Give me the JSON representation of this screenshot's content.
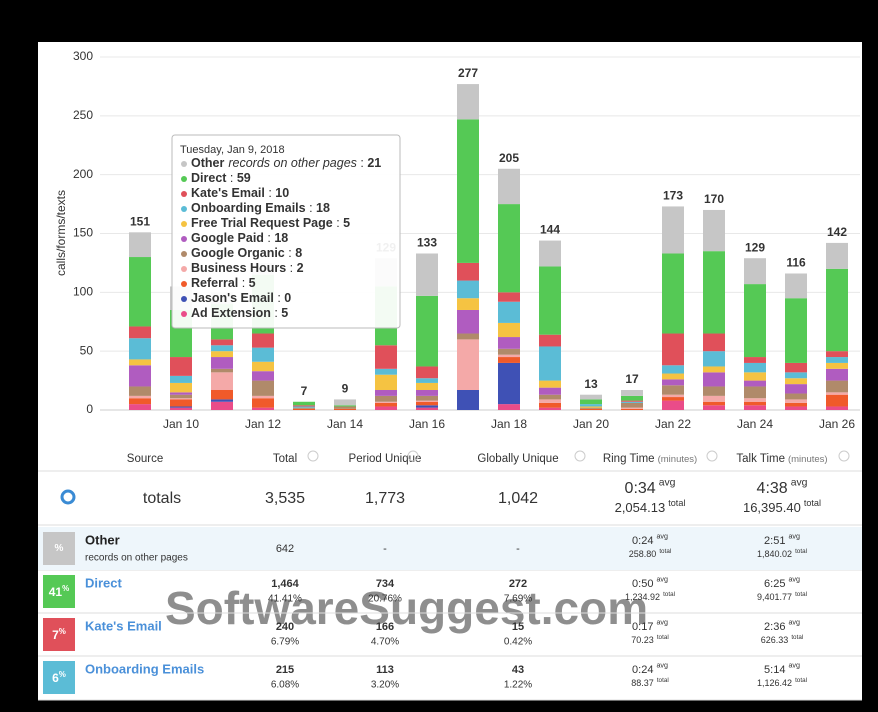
{
  "chart_data": {
    "type": "stacked-bar",
    "y_label": "calls/forms/texts",
    "categories": [
      null,
      "Jan 10",
      null,
      "Jan 12",
      null,
      "Jan 14",
      null,
      "Jan 16",
      null,
      "Jan 18",
      null,
      "Jan 20",
      null,
      "Jan 22",
      null,
      "Jan 24",
      null,
      "Jan 26"
    ],
    "totals": [
      151,
      null,
      null,
      null,
      7,
      9,
      129,
      133,
      277,
      205,
      144,
      13,
      17,
      173,
      170,
      129,
      116,
      142
    ],
    "ylim": [
      0,
      300
    ],
    "yticks": [
      0,
      50,
      100,
      150,
      200,
      250,
      300
    ],
    "grid": true,
    "series": [
      {
        "name": "Other",
        "note": "records on other pages",
        "color": "#c6c6c6",
        "values": [
          21,
          20,
          10,
          10,
          0,
          5,
          24,
          36,
          30,
          30,
          22,
          4,
          5,
          40,
          35,
          22,
          21,
          22
        ]
      },
      {
        "name": "Direct",
        "color": "#55c955",
        "values": [
          59,
          40,
          30,
          50,
          3,
          1,
          50,
          60,
          122,
          75,
          58,
          4,
          4,
          68,
          70,
          62,
          55,
          70
        ]
      },
      {
        "name": "Kate's Email",
        "color": "#e0505a",
        "values": [
          10,
          16,
          5,
          12,
          1,
          0,
          20,
          10,
          15,
          8,
          10,
          0,
          1,
          27,
          15,
          5,
          8,
          5
        ]
      },
      {
        "name": "Onboarding Emails",
        "color": "#5bbcd6",
        "values": [
          18,
          6,
          5,
          12,
          1,
          0,
          5,
          4,
          15,
          18,
          29,
          2,
          1,
          7,
          13,
          8,
          5,
          5
        ]
      },
      {
        "name": "Free Trial Request Page",
        "color": "#f5c342",
        "values": [
          5,
          8,
          5,
          8,
          0,
          0,
          13,
          6,
          10,
          12,
          6,
          1,
          0,
          5,
          5,
          7,
          5,
          5
        ]
      },
      {
        "name": "Google Paid",
        "color": "#b05cc0",
        "values": [
          18,
          2,
          10,
          8,
          0,
          0,
          5,
          5,
          20,
          10,
          6,
          0,
          0,
          5,
          12,
          5,
          8,
          10
        ]
      },
      {
        "name": "Google Organic",
        "color": "#b08a6a",
        "values": [
          8,
          3,
          3,
          13,
          1,
          2,
          5,
          4,
          5,
          5,
          4,
          1,
          4,
          8,
          8,
          10,
          5,
          10
        ]
      },
      {
        "name": "Business Hours",
        "color": "#f4a9a8",
        "values": [
          2,
          1,
          15,
          2,
          0,
          0,
          1,
          1,
          43,
          2,
          3,
          0,
          1,
          2,
          5,
          3,
          3,
          2
        ]
      },
      {
        "name": "Referral",
        "color": "#f05a2a",
        "values": [
          5,
          6,
          8,
          8,
          1,
          1,
          3,
          3,
          0,
          5,
          4,
          1,
          1,
          3,
          3,
          3,
          3,
          10
        ]
      },
      {
        "name": "Jason's Email",
        "color": "#3f51b5",
        "values": [
          0,
          1,
          2,
          0,
          0,
          0,
          0,
          2,
          17,
          35,
          0,
          0,
          0,
          0,
          0,
          0,
          0,
          0
        ]
      },
      {
        "name": "Ad Extension",
        "color": "#ea4c89",
        "values": [
          5,
          2,
          7,
          2,
          0,
          0,
          3,
          2,
          0,
          5,
          2,
          0,
          0,
          8,
          4,
          4,
          3,
          3
        ]
      }
    ],
    "tooltip": {
      "title": "Tuesday, Jan 9, 2018",
      "separator": " : "
    }
  },
  "table": {
    "headers": [
      {
        "label": "Source"
      },
      {
        "label": "Total"
      },
      {
        "label": "Period Unique"
      },
      {
        "label": "Globally Unique"
      },
      {
        "label": "Ring Time",
        "unit": "(minutes)"
      },
      {
        "label": "Talk Time",
        "unit": "(minutes)"
      }
    ],
    "avg_label": "avg",
    "total_label": "total",
    "totals": {
      "label": "totals",
      "total": "3,535",
      "period_unique": "1,773",
      "global_unique": "1,042",
      "ring_avg": "0:34",
      "ring_total": "2,054.13",
      "talk_avg": "4:38",
      "talk_total": "16,395.40"
    },
    "rows": [
      {
        "badge_unit": "%",
        "color": "#c6c6c6",
        "name": "Other",
        "note": "records on other pages",
        "total": "642",
        "period_unique": "-",
        "global_unique": "-",
        "ring_avg": "0:24",
        "ring_total": "258.80",
        "talk_avg": "2:51",
        "talk_total": "1,840.02"
      },
      {
        "badge_value": "41",
        "badge_unit": "%",
        "color": "#55c955",
        "name": "Direct",
        "total": "1,464",
        "total_pct": "41.41%",
        "period_unique": "734",
        "period_pct": "20.76%",
        "global_unique": "272",
        "global_pct": "7.69%",
        "ring_avg": "0:50",
        "ring_total": "1,234.92",
        "talk_avg": "6:25",
        "talk_total": "9,401.77"
      },
      {
        "badge_value": "7",
        "badge_unit": "%",
        "color": "#e0505a",
        "name": "Kate's Email",
        "total": "240",
        "total_pct": "6.79%",
        "period_unique": "166",
        "period_pct": "4.70%",
        "global_unique": "15",
        "global_pct": "0.42%",
        "ring_avg": "0:17",
        "ring_total": "70.23",
        "talk_avg": "2:36",
        "talk_total": "626.33"
      },
      {
        "badge_value": "6",
        "badge_unit": "%",
        "color": "#5bbcd6",
        "name": "Onboarding Emails",
        "total": "215",
        "total_pct": "6.08%",
        "period_unique": "113",
        "period_pct": "3.20%",
        "global_unique": "43",
        "global_pct": "1.22%",
        "ring_avg": "0:24",
        "ring_total": "88.37",
        "talk_avg": "5:14",
        "talk_total": "1,126.42"
      }
    ]
  },
  "watermark": "SoftwareSuggest.com"
}
